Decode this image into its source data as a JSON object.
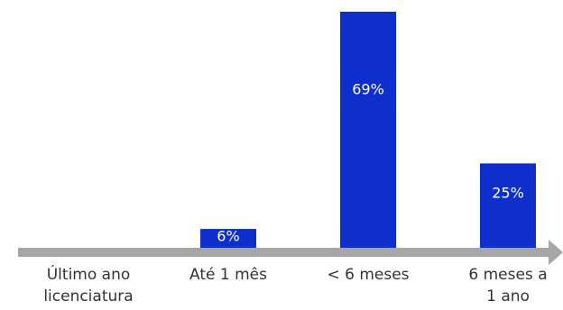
{
  "chart_data": {
    "type": "bar",
    "categories": [
      [
        "Último ano",
        "licenciatura"
      ],
      [
        "Até 1 mês"
      ],
      [
        "< 6 meses"
      ],
      [
        "6 meses a",
        "1 ano"
      ]
    ],
    "values": [
      0,
      6,
      69,
      25
    ],
    "value_labels": [
      "",
      "6%",
      "69%",
      "25%"
    ],
    "ylim": [
      0,
      69
    ],
    "bar_color": "#0f2fcc",
    "axis_color": "#a6a6a6",
    "grid": false,
    "legend": "none"
  }
}
